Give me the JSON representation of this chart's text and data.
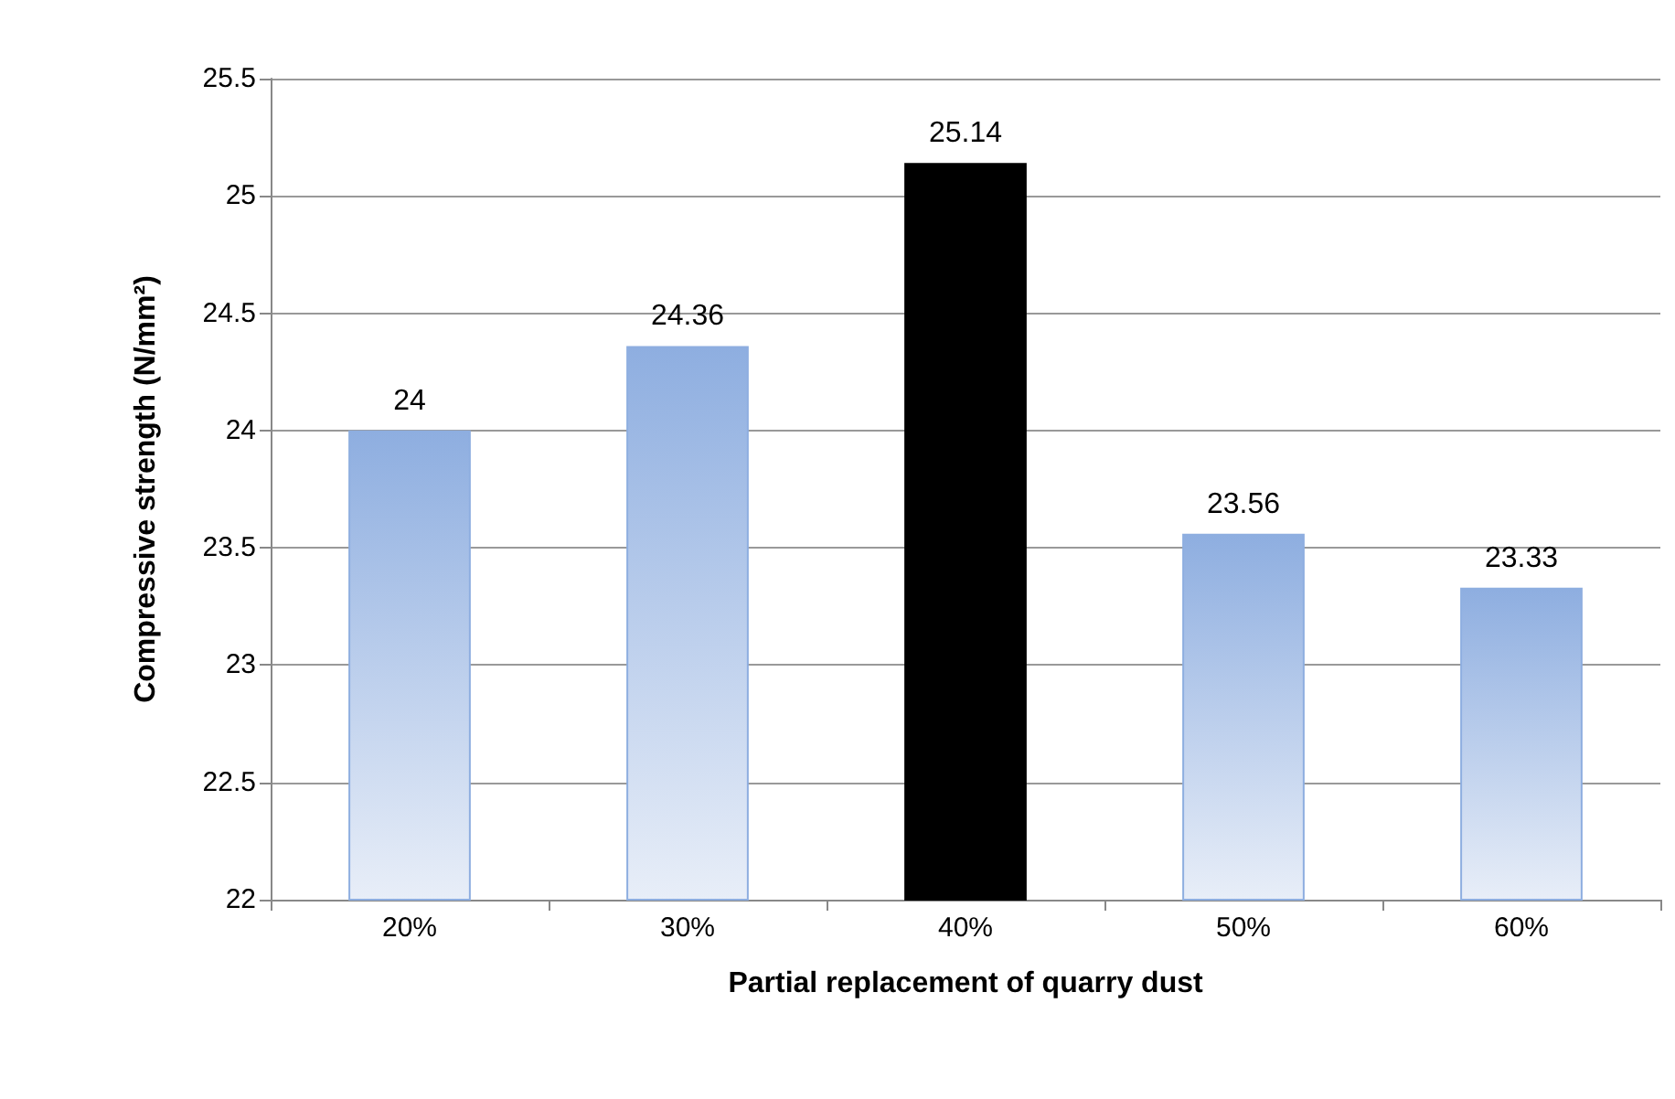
{
  "chart_data": {
    "type": "bar",
    "xlabel": "Partial replacement of quarry dust",
    "ylabel": "Compressive strength (N/mm²)",
    "categories": [
      "20%",
      "30%",
      "40%",
      "50%",
      "60%"
    ],
    "values": [
      24,
      24.36,
      25.14,
      23.56,
      23.33
    ],
    "colors": [
      "#8eaee0",
      "#8eaee0",
      "#000000",
      "#8eaee0",
      "#8eaee0"
    ],
    "ylim": [
      22,
      25.5
    ],
    "yticks": [
      22,
      22.5,
      23,
      23.5,
      24,
      24.5,
      25,
      25.5
    ],
    "grid": "y",
    "data_labels": true
  }
}
